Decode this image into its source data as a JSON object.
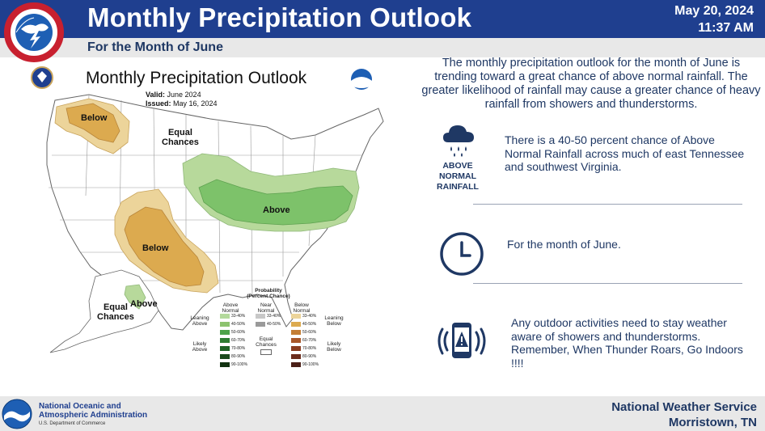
{
  "header": {
    "title": "Monthly Precipitation Outlook",
    "subtitle": "For the Month of June",
    "date": "May 20, 2024",
    "time": "11:37 AM",
    "nws_seal_text": "NATIONAL WEATHER SERVICE"
  },
  "map": {
    "title": "Monthly Precipitation Outlook",
    "valid_label": "Valid:",
    "valid_value": "June 2024",
    "issued_label": "Issued:",
    "issued_value": "May 16, 2024",
    "labels": {
      "below_northwest": "Below",
      "below_southwest": "Below",
      "above_east": "Above",
      "above_alaska": "Above",
      "equal_chances_main": "Equal\nChances",
      "equal_chances_alaska": "Equal\nChances"
    },
    "colors": {
      "below_light": "#ecd49a",
      "below_mid": "#dcaa4f",
      "above_light": "#b7d99b",
      "above_mid": "#7dc26a"
    },
    "legend": {
      "title": "Probability\n(Percent Chance)",
      "col_above": "Above\nNormal",
      "col_near": "Near\nNormal",
      "col_below": "Below\nNormal",
      "leaning_above": "Leaning\nAbove",
      "likely_above": "Likely\nAbove",
      "leaning_below": "Leaning\nBelow",
      "likely_below": "Likely\nBelow",
      "equal_chances": "Equal\nChances",
      "above_bins": [
        "33-40%",
        "40-50%",
        "50-60%",
        "60-70%",
        "70-80%",
        "80-90%",
        "90-100%"
      ],
      "near_bins": [
        "33-40%",
        "40-50%"
      ],
      "below_bins": [
        "33-40%",
        "40-50%",
        "50-60%",
        "60-70%",
        "70-80%",
        "80-90%",
        "90-100%"
      ],
      "above_colors": [
        "#b3d99b",
        "#8cc36e",
        "#4da34a",
        "#2e7d32",
        "#1f6326",
        "#1a4a1c",
        "#123311"
      ],
      "near_colors": [
        "#c8c8c8",
        "#9a9a9a"
      ],
      "below_colors": [
        "#ecd49a",
        "#dcaa4f",
        "#c47e35",
        "#a9582a",
        "#8a3d21",
        "#6b2c1c",
        "#4a1f17"
      ]
    }
  },
  "panel": {
    "intro": "The monthly precipitation outlook for the month of June is trending toward a great chance of above normal rainfall. The greater likelihood of rainfall may cause a greater chance of heavy rainfall from showers and thunderstorms.",
    "item1_text": "There is a 40-50 percent chance of Above Normal Rainfall across much of east Tennessee and southwest Virginia.",
    "item1_icon_label": "ABOVE\nNORMAL\nRAINFALL",
    "item2_text": "For the month of June.",
    "item3_text": "Any outdoor activities need to stay weather aware of showers and thunderstorms.  Remember, When Thunder Roars, Go Indoors !!!!"
  },
  "footer": {
    "noaa_line1": "National Oceanic and",
    "noaa_line2": "Atmospheric Administration",
    "noaa_dept": "U.S. Department of Commerce",
    "office_line1": "National Weather Service",
    "office_line2": "Morristown, TN"
  },
  "colors": {
    "header_blue": "#1f3f8f",
    "text_navy": "#1f3864",
    "band_gray": "#e8e8e8"
  }
}
